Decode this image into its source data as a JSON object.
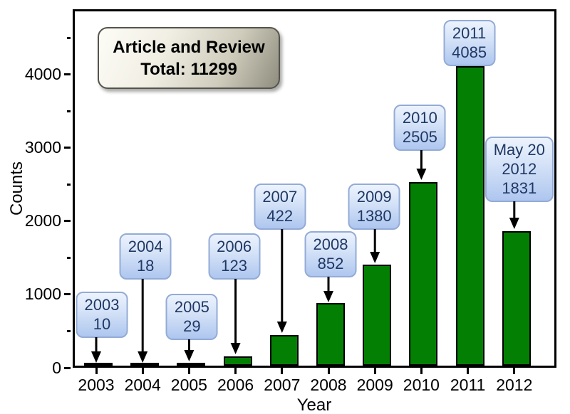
{
  "chart_data": {
    "type": "bar",
    "title": "Article and Review Total: 11299",
    "title_lines": [
      "Article and Review",
      "Total: 11299"
    ],
    "total": 11299,
    "xlabel": "Year",
    "ylabel": "Counts",
    "categories": [
      "2003",
      "2004",
      "2005",
      "2006",
      "2007",
      "2008",
      "2009",
      "2010",
      "2011",
      "2012"
    ],
    "values": [
      10,
      18,
      29,
      123,
      422,
      852,
      1380,
      2505,
      4085,
      1831
    ],
    "callouts": [
      [
        "2003",
        "10"
      ],
      [
        "2004",
        "18"
      ],
      [
        "2005",
        "29"
      ],
      [
        "2006",
        "123"
      ],
      [
        "2007",
        "422"
      ],
      [
        "2008",
        "852"
      ],
      [
        "2009",
        "1380"
      ],
      [
        "2010",
        "2505"
      ],
      [
        "2011",
        "4085"
      ],
      [
        "May 20",
        "2012",
        "1831"
      ]
    ],
    "yticks": [
      0,
      1000,
      2000,
      3000,
      4000
    ],
    "ytick_minor": [
      500,
      1500,
      2500,
      3500,
      4500
    ],
    "ylim": [
      0,
      4890
    ],
    "grid": false,
    "legend_position": "none",
    "colors": {
      "bar_fill": "#038003",
      "bar_stroke": "#000000",
      "callout_fill_top": "#ecf3fd",
      "callout_fill_bottom": "#aec6ef",
      "callout_border": "#93abd6",
      "callout_text": "#1f3864",
      "title_box_light": "#fdfcf6",
      "title_box_dark": "#8f8d7e",
      "axis": "#000000",
      "background": "#ffffff"
    }
  }
}
